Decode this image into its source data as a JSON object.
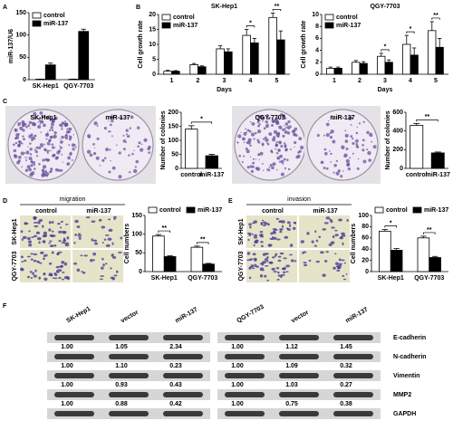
{
  "panel_labels": [
    "A",
    "B",
    "C",
    "D",
    "E",
    "F"
  ],
  "chart_data": [
    {
      "type": "bar",
      "ylabel": "miR-137/U6",
      "categories": [
        "SK-Hep1",
        "QGY-7703"
      ],
      "series": [
        {
          "name": "control",
          "color": "#ffffff",
          "values": [
            1,
            1
          ],
          "errors": [
            0.3,
            0.3
          ]
        },
        {
          "name": "miR-137",
          "color": "#000000",
          "values": [
            33,
            108
          ],
          "errors": [
            4,
            5
          ]
        }
      ],
      "ylim": [
        0,
        150
      ],
      "yticks": [
        0,
        50,
        100,
        150
      ],
      "legend": "top-left"
    },
    {
      "type": "bar",
      "title": "SK-Hep1",
      "ylabel": "Cell growth rate",
      "xlabel": "Days",
      "categories": [
        "1",
        "2",
        "3",
        "4",
        "5"
      ],
      "series": [
        {
          "name": "control",
          "color": "#ffffff",
          "values": [
            1,
            3.2,
            8.5,
            13,
            19
          ],
          "errors": [
            0.3,
            0.4,
            1,
            2,
            1.5
          ]
        },
        {
          "name": "miR-137",
          "color": "#000000",
          "values": [
            1,
            2.5,
            7.5,
            10.5,
            11.5
          ],
          "errors": [
            0.2,
            0.3,
            1,
            1.5,
            3
          ]
        }
      ],
      "significance": [
        null,
        null,
        null,
        "*",
        "**"
      ],
      "ylim": [
        0,
        20
      ],
      "yticks": [
        0,
        5,
        10,
        15,
        20
      ],
      "legend": "top-left"
    },
    {
      "type": "bar",
      "title": "QGY-7703",
      "ylabel": "Cell growth rate",
      "xlabel": "Days",
      "categories": [
        "1",
        "2",
        "3",
        "4",
        "5"
      ],
      "series": [
        {
          "name": "control",
          "color": "#ffffff",
          "values": [
            1,
            2,
            3,
            5,
            7.3
          ],
          "errors": [
            0.2,
            0.3,
            0.5,
            1.5,
            1.5
          ]
        },
        {
          "name": "miR-137",
          "color": "#000000",
          "values": [
            1,
            1.8,
            2,
            3.2,
            4.5
          ],
          "errors": [
            0.2,
            0.3,
            0.4,
            1.2,
            1.5
          ]
        }
      ],
      "significance": [
        null,
        null,
        "*",
        "*",
        "**"
      ],
      "ylim": [
        0,
        10
      ],
      "yticks": [
        0,
        2,
        4,
        6,
        8,
        10
      ],
      "legend": "top-left"
    },
    {
      "type": "bar",
      "ylabel": "Number of colonies",
      "categories": [
        "control",
        "miR-137"
      ],
      "values": [
        140,
        45
      ],
      "errors": [
        12,
        5
      ],
      "colors": [
        "#ffffff",
        "#000000"
      ],
      "significance": "*",
      "ylim": [
        0,
        200
      ],
      "yticks": [
        0,
        50,
        100,
        150,
        200
      ]
    },
    {
      "type": "bar",
      "ylabel": "Number of colonies",
      "categories": [
        "control",
        "miR-137"
      ],
      "values": [
        460,
        165
      ],
      "errors": [
        20,
        10
      ],
      "colors": [
        "#ffffff",
        "#000000"
      ],
      "significance": "**",
      "ylim": [
        0,
        600
      ],
      "yticks": [
        0,
        200,
        400,
        600
      ]
    },
    {
      "type": "bar",
      "ylabel": "Cell numbers",
      "categories": [
        "SK-Hep1",
        "QGY-7703"
      ],
      "series": [
        {
          "name": "control",
          "color": "#ffffff",
          "values": [
            95,
            65
          ],
          "errors": [
            4,
            3
          ]
        },
        {
          "name": "miR-137",
          "color": "#000000",
          "values": [
            40,
            20
          ],
          "errors": [
            2,
            2
          ]
        }
      ],
      "significance": [
        "**",
        "**"
      ],
      "ylim": [
        0,
        150
      ],
      "yticks": [
        0,
        50,
        100,
        150
      ],
      "legend": "top"
    },
    {
      "type": "bar",
      "ylabel": "Cell numbers",
      "categories": [
        "SK-Hep1",
        "QGY-7703"
      ],
      "series": [
        {
          "name": "control",
          "color": "#ffffff",
          "values": [
            72,
            60
          ],
          "errors": [
            3,
            3
          ]
        },
        {
          "name": "miR-137",
          "color": "#000000",
          "values": [
            38,
            25
          ],
          "errors": [
            3,
            2
          ]
        }
      ],
      "significance": [
        "*",
        "**"
      ],
      "ylim": [
        0,
        100
      ],
      "yticks": [
        0,
        20,
        40,
        60,
        80,
        100
      ],
      "legend": "top"
    }
  ],
  "colony_assay": {
    "labels": [
      "SK-Hep1",
      "miR-137",
      "QGY-7703",
      "miR-137"
    ]
  },
  "migration": {
    "title": "migration",
    "columns": [
      "control",
      "miR-137"
    ],
    "rows": [
      "SK-Hep1",
      "QGY-7703"
    ]
  },
  "invasion": {
    "title": "invasion",
    "columns": [
      "control",
      "miR-137"
    ],
    "rows": [
      "SK-Hep1",
      "QGY-7703"
    ]
  },
  "western_blot": {
    "columns": [
      "SK-Hep1",
      "vector",
      "miR-137",
      "QGY-7703",
      "vector",
      "miR-137"
    ],
    "rows": [
      {
        "name": "E-cadherin",
        "values": [
          "1.00",
          "1.05",
          "2.34",
          "1.00",
          "1.12",
          "1.45"
        ]
      },
      {
        "name": "N-cadherin",
        "values": [
          "1.00",
          "1.10",
          "0.23",
          "1.00",
          "1.09",
          "0.32"
        ]
      },
      {
        "name": "Vimentin",
        "values": [
          "1.00",
          "0.93",
          "0.43",
          "1.00",
          "1.03",
          "0.27"
        ]
      },
      {
        "name": "MMP2",
        "values": [
          "1.00",
          "0.88",
          "0.42",
          "1.00",
          "0.75",
          "0.38"
        ]
      },
      {
        "name": "GAPDH"
      }
    ]
  }
}
